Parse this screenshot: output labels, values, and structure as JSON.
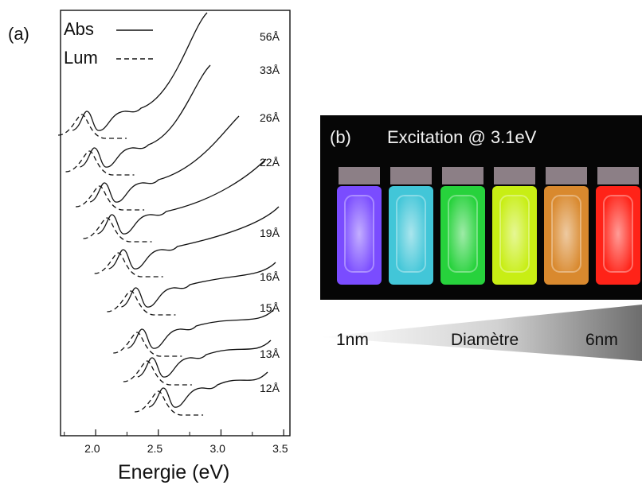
{
  "panel_a": {
    "label": "(a)",
    "legend": [
      {
        "label": "Abs",
        "style": "solid"
      },
      {
        "label": "Lum",
        "style": "dashed"
      }
    ]
  },
  "panel_b": {
    "label": "(b)",
    "title": "Excitation @ 3.1eV",
    "size_axis": {
      "left": "1nm",
      "center": "Diamètre",
      "right": "6nm"
    },
    "vial_colors": [
      "#7a4cff",
      "#42c6d8",
      "#27d23c",
      "#c8ee14",
      "#d9892e",
      "#ff2318"
    ]
  },
  "chart_data": {
    "type": "line",
    "xlabel": "Energie (eV)",
    "ylabel": "",
    "xlim": [
      1.72,
      3.55
    ],
    "x_ticks": [
      2.0,
      2.5,
      3.0,
      3.5
    ],
    "x_tick_labels": [
      "2.0",
      "2.5",
      "3.0",
      "3.5"
    ],
    "y_ticks_shown": false,
    "grid": false,
    "legend_position": "top-left",
    "series": [
      {
        "name": "56Å",
        "peak_eV": 1.93
      },
      {
        "name": "33Å",
        "peak_eV": 1.99
      },
      {
        "name": "26Å",
        "peak_eV": 2.07
      },
      {
        "name": "22Å",
        "peak_eV": 2.13
      },
      {
        "name": "19Å",
        "peak_eV": 2.22
      },
      {
        "name": "16Å",
        "peak_eV": 2.32
      },
      {
        "name": "15Å",
        "peak_eV": 2.37
      },
      {
        "name": "13Å",
        "peak_eV": 2.45
      },
      {
        "name": "12Å",
        "peak_eV": 2.54
      }
    ]
  }
}
